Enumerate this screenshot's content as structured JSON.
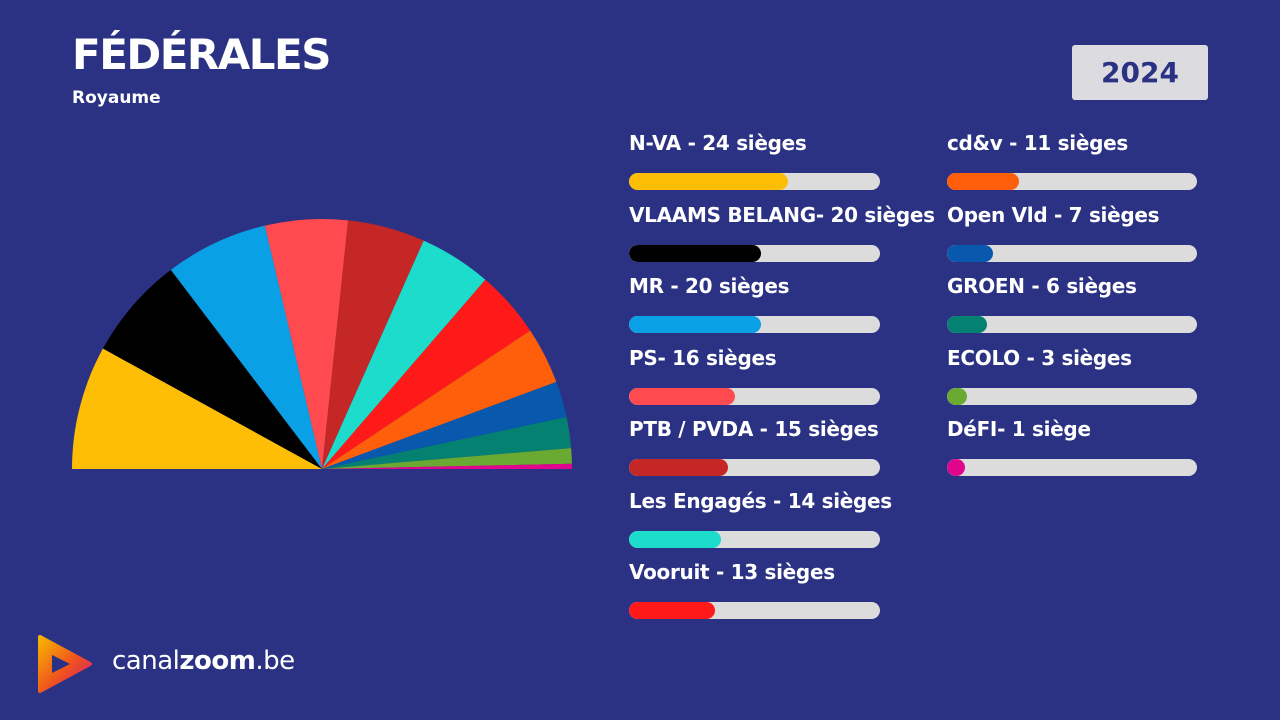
{
  "header": {
    "title": "FÉDÉRALES",
    "subtitle": "Royaume",
    "year": "2024"
  },
  "brand": {
    "name_part1": "canal",
    "name_part2": "zoom",
    "name_part3": ".be",
    "logo_icon": "play-icon"
  },
  "colors": {
    "background": "#2c3283",
    "bar_track": "#dcdcdc",
    "badge_bg": "#dcdce0"
  },
  "chart_data": {
    "type": "pie",
    "subtype": "hemicycle",
    "total_seats": 150,
    "seats_scale_max": 38,
    "parties": [
      {
        "name": "N-VA",
        "seats": 24,
        "label": "N-VA - 24 sièges",
        "color": "#fdbe05"
      },
      {
        "name": "VLAAMS BELANG",
        "seats": 20,
        "label": "VLAAMS BELANG- 20 sièges",
        "color": "#000000"
      },
      {
        "name": "MR",
        "seats": 20,
        "label": "MR - 20 sièges",
        "color": "#0aa0e5"
      },
      {
        "name": "PS",
        "seats": 16,
        "label": "PS- 16 sièges",
        "color": "#ff4a4f"
      },
      {
        "name": "PTB / PVDA",
        "seats": 15,
        "label": "PTB / PVDA - 15 sièges",
        "color": "#c42726"
      },
      {
        "name": "Les Engagés",
        "seats": 14,
        "label": "Les Engagés - 14 sièges",
        "color": "#1edccb"
      },
      {
        "name": "Vooruit",
        "seats": 13,
        "label": "Vooruit - 13 sièges",
        "color": "#ff1a19"
      },
      {
        "name": "cd&v",
        "seats": 11,
        "label": "cd&v - 11 sièges",
        "color": "#ff5f0a"
      },
      {
        "name": "Open Vld",
        "seats": 7,
        "label": "Open Vld - 7 sièges",
        "color": "#0858ad"
      },
      {
        "name": "GROEN",
        "seats": 6,
        "label": "GROEN - 6 sièges",
        "color": "#058172"
      },
      {
        "name": "ECOLO",
        "seats": 3,
        "label": "ECOLO - 3 sièges",
        "color": "#6aaa33"
      },
      {
        "name": "DéFI",
        "seats": 1,
        "label": "DéFI- 1 siège",
        "color": "#e1058d"
      }
    ]
  }
}
